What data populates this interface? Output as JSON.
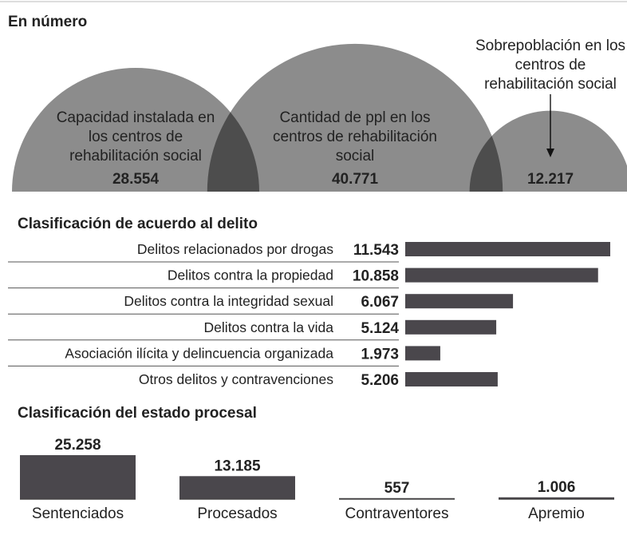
{
  "chart_data": [
    {
      "type": "semicircle",
      "title": "En número",
      "categories": [
        "Capacidad instalada en los centros de rehabilitación social",
        "Cantidad de ppl en los centros de rehabilitación social",
        "Sobrepoblación en los centros de rehabilitación social"
      ],
      "values": [
        28554,
        40771,
        12217
      ],
      "value_labels": [
        "28.554",
        "40.771",
        "12.217"
      ],
      "color": "#8c8c8e"
    },
    {
      "type": "hbar",
      "title": "Clasificación de acuerdo al delito",
      "categories": [
        "Delitos relacionados por drogas",
        "Delitos contra la propiedad",
        "Delitos contra la integridad sexual",
        "Delitos contra la vida",
        "Asociación ilícita y delincuencia organizada",
        "Otros delitos y contravenciones"
      ],
      "values": [
        11543,
        10858,
        6067,
        5124,
        1973,
        5206
      ],
      "value_labels": [
        "11.543",
        "10.858",
        "6.067",
        "5.124",
        "1.973",
        "5.206"
      ],
      "color": "#4a474c"
    },
    {
      "type": "column",
      "title": "Clasificación del estado procesal",
      "categories": [
        "Sentenciados",
        "Procesados",
        "Contraventores",
        "Apremio"
      ],
      "values": [
        25258,
        13185,
        557,
        1006
      ],
      "value_labels": [
        "25.258",
        "13.185",
        "557",
        "1.006"
      ],
      "color": "#4a474c"
    }
  ]
}
